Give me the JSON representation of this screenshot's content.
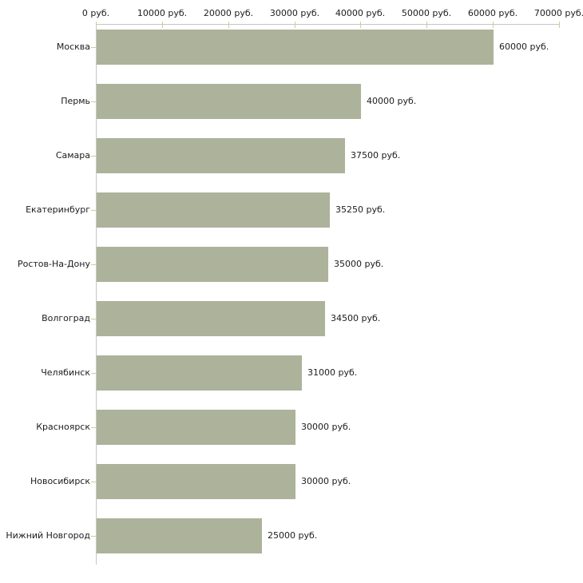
{
  "chart_data": {
    "type": "bar",
    "orientation": "horizontal",
    "title": "",
    "categories": [
      "Москва",
      "Пермь",
      "Самара",
      "Екатеринбург",
      "Ростов-На-Дону",
      "Волгоград",
      "Челябинск",
      "Красноярск",
      "Новосибирск",
      "Нижний Новгород"
    ],
    "values": [
      60000,
      40000,
      37500,
      35250,
      35000,
      34500,
      31000,
      30000,
      30000,
      25000
    ],
    "value_labels": [
      "60000 руб.",
      "40000 руб.",
      "37500 руб.",
      "35250 руб.",
      "35000 руб.",
      "34500 руб.",
      "31000 руб.",
      "30000 руб.",
      "30000 руб.",
      "25000 руб."
    ],
    "xlabel": "",
    "ylabel": "",
    "xlim": [
      0,
      70000
    ],
    "x_ticks": [
      0,
      10000,
      20000,
      30000,
      40000,
      50000,
      60000,
      70000
    ],
    "x_tick_labels": [
      "0 руб.",
      "10000 руб.",
      "20000 руб.",
      "30000 руб.",
      "40000 руб.",
      "50000 руб.",
      "60000 руб.",
      "70000 руб."
    ],
    "axis_position": "top",
    "grid": false,
    "legend": false,
    "colors": {
      "bar_fill": "#adb29b",
      "axis_line": "#c6c6c6",
      "tick_mark": "#ccccA0",
      "text": "#1c1c1c",
      "background": "#ffffff"
    }
  }
}
